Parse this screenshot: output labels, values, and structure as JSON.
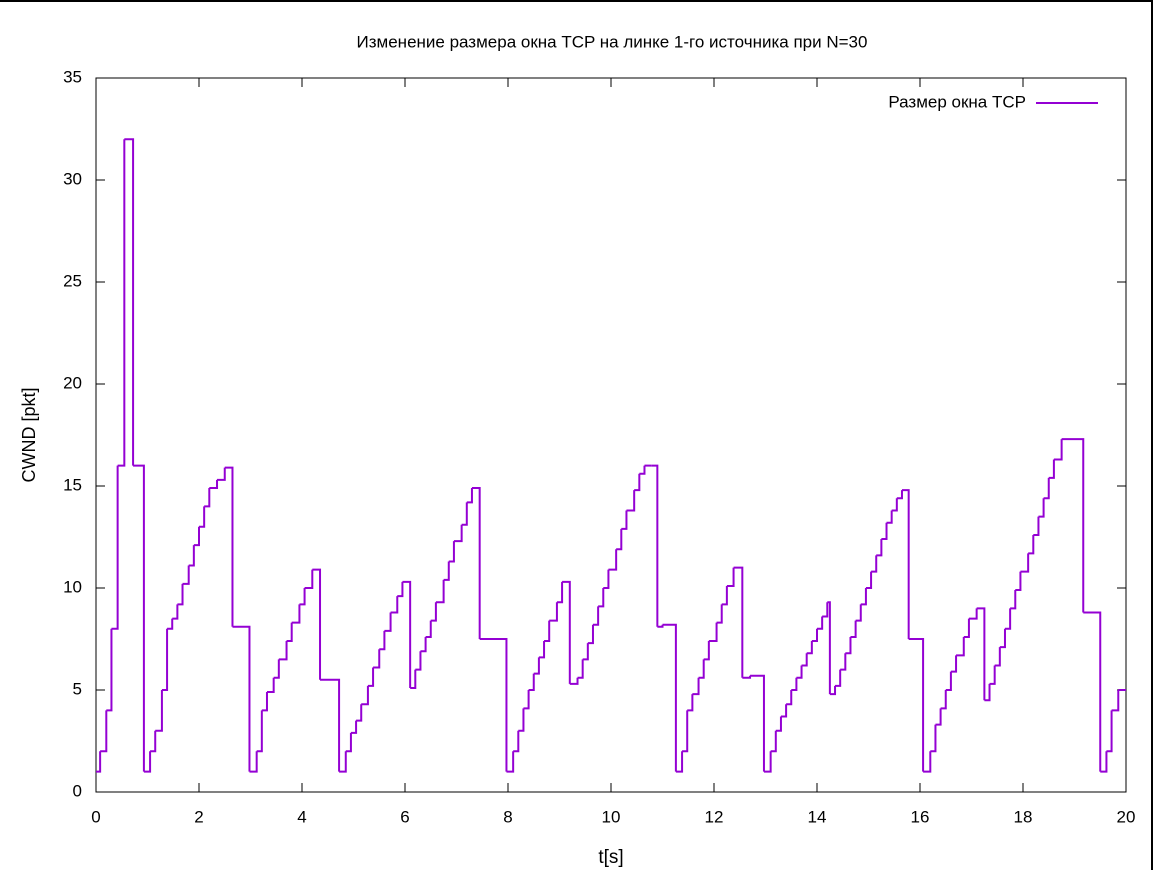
{
  "chart_data": {
    "type": "step",
    "title": "Изменение размера окна TCP на линке 1-го источника при N=30",
    "x_label": "t[s]",
    "y_label": "CWND [pkt]",
    "xlim": [
      0,
      20
    ],
    "ylim": [
      0,
      35
    ],
    "xticks": [
      0,
      2,
      4,
      6,
      8,
      10,
      12,
      14,
      16,
      18,
      20
    ],
    "yticks": [
      0,
      5,
      10,
      15,
      20,
      25,
      30,
      35
    ],
    "legend": "top-right",
    "x": [
      0,
      0.08,
      0.2,
      0.3,
      0.42,
      0.55,
      0.72,
      0.93,
      1.05,
      1.15,
      1.28,
      1.38,
      1.48,
      1.58,
      1.68,
      1.8,
      1.9,
      2.0,
      2.1,
      2.2,
      2.35,
      2.5,
      2.65,
      2.98,
      3.12,
      3.22,
      3.32,
      3.45,
      3.55,
      3.7,
      3.8,
      3.95,
      4.05,
      4.2,
      4.35,
      4.72,
      4.85,
      4.95,
      5.05,
      5.15,
      5.28,
      5.38,
      5.5,
      5.6,
      5.72,
      5.85,
      5.95,
      6.1,
      6.2,
      6.3,
      6.4,
      6.5,
      6.6,
      6.75,
      6.85,
      6.95,
      7.1,
      7.2,
      7.3,
      7.45,
      7.97,
      8.1,
      8.2,
      8.3,
      8.4,
      8.5,
      8.6,
      8.7,
      8.8,
      8.95,
      9.05,
      9.2,
      9.35,
      9.45,
      9.55,
      9.65,
      9.75,
      9.85,
      9.95,
      10.1,
      10.2,
      10.3,
      10.45,
      10.55,
      10.65,
      10.78,
      10.9,
      11.0,
      11.26,
      11.38,
      11.48,
      11.58,
      11.7,
      11.8,
      11.9,
      12.05,
      12.15,
      12.25,
      12.38,
      12.55,
      12.7,
      12.97,
      13.1,
      13.2,
      13.3,
      13.4,
      13.5,
      13.6,
      13.7,
      13.8,
      13.9,
      14.0,
      14.1,
      14.2,
      14.25,
      14.35,
      14.45,
      14.55,
      14.65,
      14.75,
      14.85,
      14.95,
      15.05,
      15.15,
      15.25,
      15.35,
      15.45,
      15.55,
      15.65,
      15.78,
      16.06,
      16.2,
      16.3,
      16.4,
      16.5,
      16.6,
      16.7,
      16.85,
      16.95,
      17.1,
      17.25,
      17.35,
      17.45,
      17.55,
      17.65,
      17.75,
      17.85,
      17.95,
      18.1,
      18.2,
      18.3,
      18.4,
      18.5,
      18.6,
      18.75,
      19.17,
      19.5,
      19.62,
      19.72,
      19.85
    ],
    "series": [
      {
        "name": "Размер окна TCP",
        "color": "#9400d3",
        "values": [
          1,
          2,
          4,
          8,
          16,
          32,
          16,
          1,
          2,
          3,
          5,
          8,
          8.5,
          9.2,
          10.2,
          11.1,
          12.1,
          13,
          14,
          14.9,
          15.3,
          15.9,
          8.1,
          1,
          2,
          4,
          4.9,
          5.6,
          6.5,
          7.4,
          8.3,
          9.2,
          10,
          10.9,
          5.5,
          1,
          2,
          2.9,
          3.5,
          4.3,
          5.2,
          6.1,
          7,
          7.9,
          8.8,
          9.6,
          10.3,
          5.1,
          6,
          6.9,
          7.6,
          8.4,
          9.3,
          10.4,
          11.3,
          12.3,
          13.1,
          14.2,
          14.9,
          7.5,
          1,
          2,
          3,
          4.1,
          5,
          5.8,
          6.6,
          7.4,
          8.4,
          9.3,
          10.3,
          5.3,
          5.6,
          6.5,
          7.3,
          8.2,
          9.1,
          10,
          10.9,
          11.9,
          12.9,
          13.8,
          14.8,
          15.6,
          16,
          16,
          8.1,
          8.2,
          1,
          2,
          4,
          4.8,
          5.6,
          6.5,
          7.4,
          8.3,
          9.2,
          10.1,
          11,
          5.6,
          5.7,
          1,
          2,
          3,
          3.7,
          4.3,
          5,
          5.6,
          6.2,
          6.8,
          7.4,
          8,
          8.6,
          9.3,
          4.8,
          5.2,
          6,
          6.8,
          7.6,
          8.4,
          9.2,
          10,
          10.8,
          11.6,
          12.4,
          13.2,
          13.8,
          14.4,
          14.8,
          7.5,
          1,
          2,
          3.3,
          4.1,
          5,
          5.9,
          6.7,
          7.6,
          8.5,
          9,
          4.5,
          5.3,
          6.2,
          7.1,
          8,
          9,
          9.9,
          10.8,
          11.7,
          12.6,
          13.5,
          14.4,
          15.4,
          16.3,
          17.3,
          8.8,
          1,
          2,
          4,
          5
        ]
      }
    ]
  }
}
